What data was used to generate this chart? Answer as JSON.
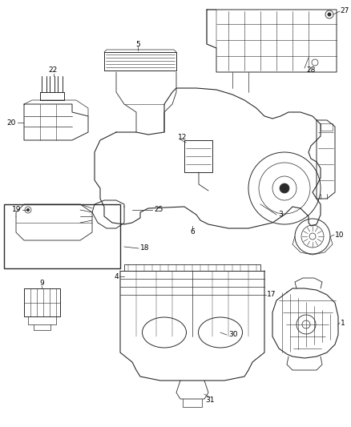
{
  "bg_color": "#ffffff",
  "line_color": "#2a2a2a",
  "label_color": "#000000",
  "fig_width": 4.38,
  "fig_height": 5.33,
  "dpi": 100
}
